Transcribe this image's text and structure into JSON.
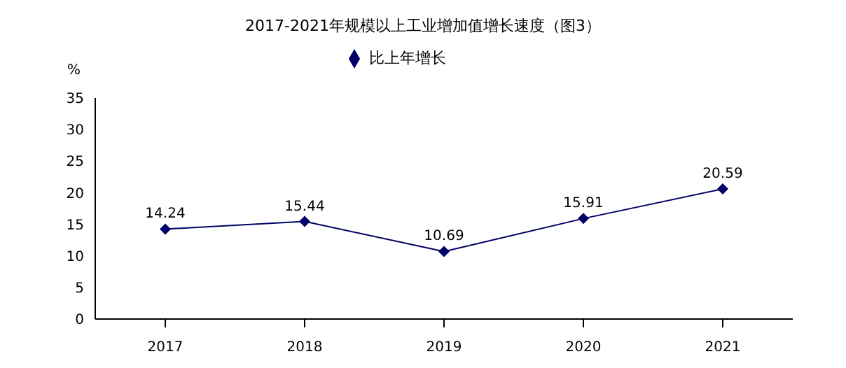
{
  "chart_data": {
    "type": "line",
    "title": "2017-2021年规模以上工业增加值增长速度（图3）",
    "ylabel": "%",
    "categories": [
      "2017",
      "2018",
      "2019",
      "2020",
      "2021"
    ],
    "series": [
      {
        "name": "比上年增长",
        "color": "#000066",
        "values": [
          14.24,
          15.44,
          10.69,
          15.91,
          20.59
        ]
      }
    ],
    "ylim": [
      0,
      35
    ],
    "yticks": [
      0,
      5,
      10,
      15,
      20,
      25,
      30,
      35
    ],
    "grid": false,
    "legend": "top",
    "marker": "diamond",
    "data_labels": true
  }
}
